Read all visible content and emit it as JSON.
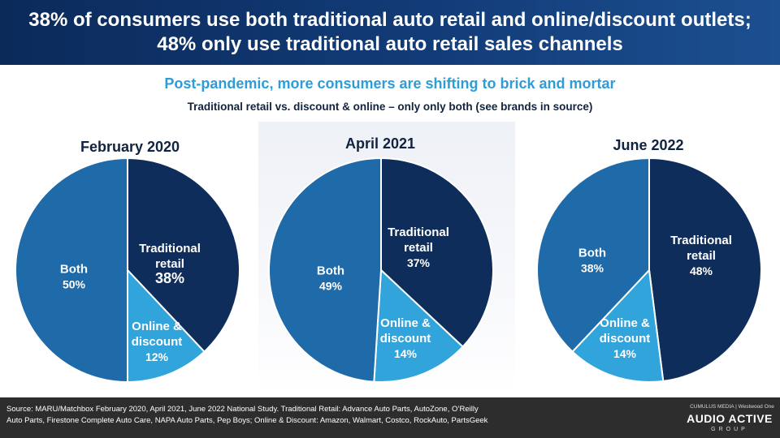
{
  "header": {
    "title": "38% of consumers use both traditional auto retail and online/discount outlets; 48% only use traditional auto retail sales channels"
  },
  "subtitle": "Post-pandemic, more consumers are shifting to brick and mortar",
  "subsubtitle": "Traditional retail vs. discount & online – only only both (see brands in source)",
  "colors": {
    "traditional": "#0e2d5a",
    "online": "#32a4dc",
    "both": "#1f6aa8"
  },
  "chart_data": [
    {
      "type": "pie",
      "title": "February 2020",
      "slices": [
        {
          "label": "Traditional retail",
          "value": 38,
          "display": "38%"
        },
        {
          "label": "Online & discount",
          "value": 12,
          "display": "12%"
        },
        {
          "label": "Both",
          "value": 50,
          "display": "50%"
        }
      ]
    },
    {
      "type": "pie",
      "title": "April 2021",
      "slices": [
        {
          "label": "Traditional retail",
          "value": 37,
          "display": "37%"
        },
        {
          "label": "Online & discount",
          "value": 14,
          "display": "14%"
        },
        {
          "label": "Both",
          "value": 49,
          "display": "49%"
        }
      ]
    },
    {
      "type": "pie",
      "title": "June 2022",
      "slices": [
        {
          "label": "Traditional retail",
          "value": 48,
          "display": "48%"
        },
        {
          "label": "Online & discount",
          "value": 14,
          "display": "14%"
        },
        {
          "label": "Both",
          "value": 38,
          "display": "38%"
        }
      ]
    }
  ],
  "footer": {
    "source_line1": "Source: MARU/Matchbox February 2020, April 2021, June 2022 National Study.  Traditional Retail: Advance Auto Parts, AutoZone, O’Reilly",
    "source_line2": "Auto Parts, Firestone Complete Auto Care, NAPA Auto Parts, Pep Boys; Online & Discount: Amazon, Walmart, Costco, RockAuto, PartsGeek",
    "logo_top": "CUMULUS MEDIA | Westwood One",
    "logo_main": "AUDIO ACTIVE",
    "logo_sub": "GROUP"
  }
}
